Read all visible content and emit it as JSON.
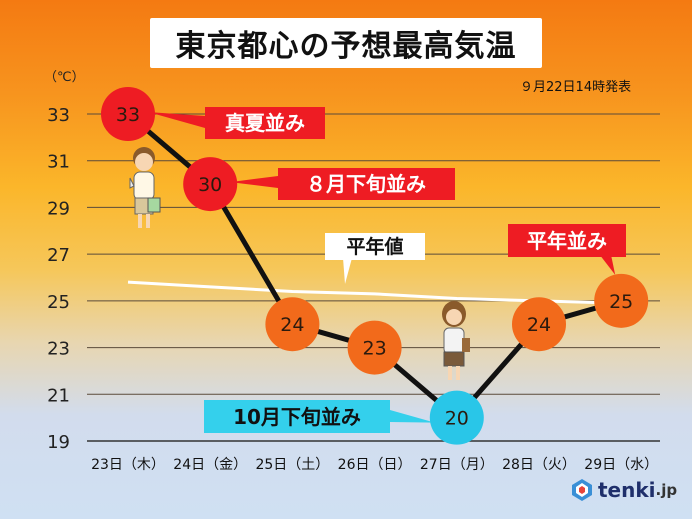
{
  "title": "東京都心の予想最高気温",
  "unit_label": "（℃）",
  "issued": "９月22日14時発表",
  "logo": {
    "brand": "tenki",
    "suffix": ".jp"
  },
  "colors": {
    "hot": "#ee1c23",
    "warm": "#f26a1b",
    "cool": "#29c6e8",
    "label_red": "#ee1c23",
    "label_cyan": "#34d0ec",
    "line": "#111111",
    "normal_line": "#ffffff"
  },
  "annotations": {
    "a1": "真夏並み",
    "a2": "８月下旬並み",
    "a3": "10月下旬並み",
    "a4": "平年並み",
    "a5": "平年値"
  },
  "chart_data": {
    "type": "line",
    "categories": [
      "23日（木）",
      "24日（金）",
      "25日（土）",
      "26日（日）",
      "27日（月）",
      "28日（火）",
      "29日（水）"
    ],
    "series": [
      {
        "values": [
          33,
          30,
          24,
          23,
          20,
          24,
          25
        ]
      }
    ],
    "normal_values": [
      25.8,
      25.6,
      25.4,
      25.3,
      25.1,
      25.0,
      24.9
    ],
    "yticks": [
      33,
      31,
      29,
      27,
      25,
      23,
      21,
      19
    ],
    "ylim": [
      19,
      34
    ],
    "grid": true
  }
}
